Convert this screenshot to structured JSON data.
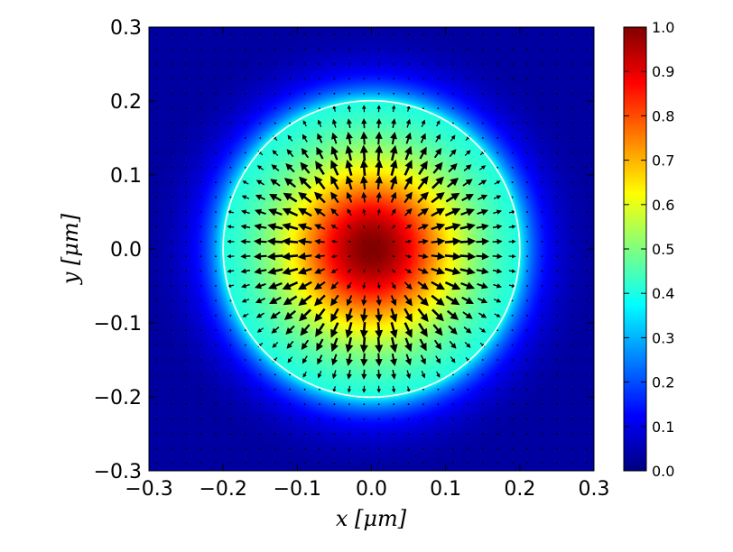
{
  "chart_data": {
    "type": "heatmap",
    "overlay": "quiver",
    "title": "",
    "xlabel": "x [μm]",
    "ylabel": "y [μm]",
    "xlim": [
      -0.3,
      0.3
    ],
    "ylim": [
      -0.3,
      0.3
    ],
    "xticks": [
      "−0.3",
      "−0.2",
      "−0.1",
      "0.0",
      "0.1",
      "0.2",
      "0.3"
    ],
    "yticks": [
      "−0.3",
      "−0.2",
      "−0.1",
      "0.0",
      "0.1",
      "0.2",
      "0.3"
    ],
    "xtick_values": [
      -0.3,
      -0.2,
      -0.1,
      0.0,
      0.1,
      0.2,
      0.3
    ],
    "ytick_values": [
      -0.3,
      -0.2,
      -0.1,
      0.0,
      0.1,
      0.2,
      0.3
    ],
    "colormap": "jet",
    "colorbar": {
      "range": [
        0.0,
        1.0
      ],
      "ticks": [
        "0.0",
        "0.1",
        "0.2",
        "0.3",
        "0.4",
        "0.5",
        "0.6",
        "0.7",
        "0.8",
        "0.9",
        "1.0"
      ],
      "tick_values": [
        0.0,
        0.1,
        0.2,
        0.3,
        0.4,
        0.5,
        0.6,
        0.7,
        0.8,
        0.9,
        1.0
      ]
    },
    "field": {
      "center": [
        0.0,
        0.0
      ],
      "disk_radius": 0.2,
      "peak_value": 1.0,
      "disk_edge_value": 0.38,
      "outside_value": 0.02,
      "vector_field": "radial outward",
      "arrow_grid_step": 0.02
    },
    "boundary_circle": {
      "radius": 0.2,
      "color": "#ffffff"
    },
    "grid": false
  }
}
